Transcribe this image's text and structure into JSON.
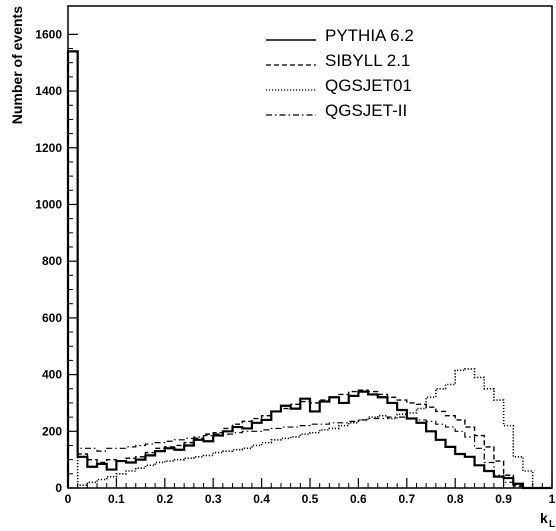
{
  "chart_data": {
    "type": "step-histogram",
    "xlabel": "k",
    "xlabel_subscript": "L",
    "ylabel": "Number of events",
    "xlim": [
      0,
      1
    ],
    "ylim": [
      0,
      1700
    ],
    "x_ticks": [
      {
        "value": 0,
        "label": "0"
      },
      {
        "value": 0.1,
        "label": "0.1"
      },
      {
        "value": 0.2,
        "label": "0.2"
      },
      {
        "value": 0.3,
        "label": "0.3"
      },
      {
        "value": 0.4,
        "label": "0.4"
      },
      {
        "value": 0.5,
        "label": "0.5"
      },
      {
        "value": 0.6,
        "label": "0.6"
      },
      {
        "value": 0.7,
        "label": "0.7"
      },
      {
        "value": 0.8,
        "label": "0.8"
      },
      {
        "value": 0.9,
        "label": "0.9"
      },
      {
        "value": 1,
        "label": "1"
      }
    ],
    "y_ticks": [
      {
        "value": 0,
        "label": "0"
      },
      {
        "value": 200,
        "label": "200"
      },
      {
        "value": 400,
        "label": "400"
      },
      {
        "value": 600,
        "label": "600"
      },
      {
        "value": 800,
        "label": "800"
      },
      {
        "value": 1000,
        "label": "1000"
      },
      {
        "value": 1200,
        "label": "1200"
      },
      {
        "value": 1400,
        "label": "1400"
      },
      {
        "value": 1600,
        "label": "1600"
      }
    ],
    "bin_edges_start": 0,
    "bin_width": 0.02,
    "legend_position": "top-right",
    "series": [
      {
        "name": "PYTHIA 6.2",
        "style": "solid",
        "values": [
          1540,
          110,
          75,
          85,
          65,
          95,
          90,
          100,
          115,
          130,
          140,
          135,
          150,
          170,
          165,
          185,
          200,
          215,
          210,
          230,
          240,
          270,
          290,
          280,
          315,
          270,
          305,
          320,
          300,
          325,
          340,
          330,
          320,
          300,
          275,
          245,
          230,
          200,
          170,
          145,
          120,
          110,
          80,
          60,
          40,
          35,
          15,
          0,
          0,
          0
        ]
      },
      {
        "name": "SIBYLL 2.1",
        "style": "dashed",
        "values": [
          1540,
          120,
          100,
          90,
          100,
          95,
          105,
          110,
          125,
          140,
          145,
          150,
          160,
          175,
          190,
          195,
          210,
          225,
          235,
          245,
          255,
          270,
          280,
          295,
          305,
          300,
          310,
          320,
          330,
          340,
          345,
          340,
          330,
          320,
          310,
          300,
          295,
          285,
          270,
          255,
          240,
          215,
          185,
          145,
          95,
          45,
          10,
          0,
          0,
          0
        ]
      },
      {
        "name": "QGSJET01",
        "style": "dotted",
        "values": [
          1540,
          10,
          20,
          30,
          40,
          50,
          60,
          70,
          80,
          90,
          95,
          100,
          105,
          110,
          115,
          125,
          130,
          135,
          140,
          150,
          160,
          170,
          175,
          180,
          190,
          195,
          205,
          210,
          220,
          230,
          240,
          250,
          255,
          245,
          260,
          265,
          280,
          320,
          350,
          365,
          415,
          420,
          390,
          350,
          310,
          220,
          110,
          60,
          0,
          0
        ]
      },
      {
        "name": "QGSJET-II",
        "style": "dashdot",
        "values": [
          1540,
          140,
          140,
          130,
          140,
          140,
          145,
          150,
          155,
          160,
          165,
          170,
          175,
          180,
          185,
          190,
          190,
          195,
          200,
          200,
          205,
          210,
          215,
          215,
          220,
          225,
          225,
          230,
          230,
          235,
          240,
          245,
          245,
          250,
          250,
          245,
          240,
          235,
          225,
          215,
          200,
          180,
          140,
          90,
          45,
          20,
          5,
          0,
          0,
          0
        ]
      }
    ]
  }
}
